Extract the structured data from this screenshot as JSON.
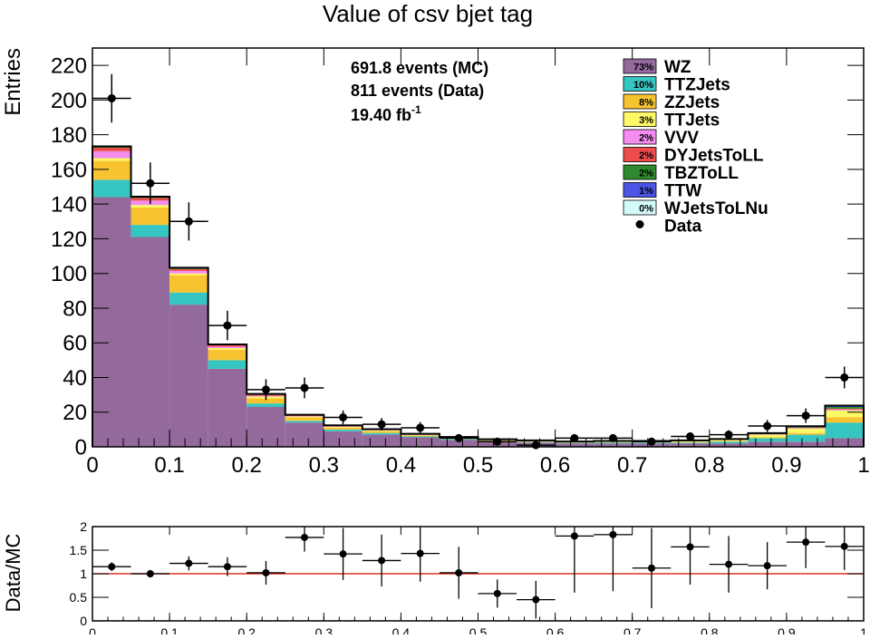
{
  "chart_data": [
    {
      "type": "bar",
      "stacked": true,
      "title": "Value of csv bjet tag",
      "xlabel": "",
      "ylabel": "Entries",
      "xlim": [
        0,
        1
      ],
      "ylim": [
        0,
        230
      ],
      "x_ticks": [
        "0",
        "0.1",
        "0.2",
        "0.3",
        "0.4",
        "0.5",
        "0.6",
        "0.7",
        "0.8",
        "0.9",
        "1"
      ],
      "y_ticks": [
        "0",
        "20",
        "40",
        "60",
        "80",
        "100",
        "120",
        "140",
        "160",
        "180",
        "200",
        "220"
      ],
      "bin_edges": [
        0,
        0.05,
        0.1,
        0.15,
        0.2,
        0.25,
        0.3,
        0.35,
        0.4,
        0.45,
        0.5,
        0.55,
        0.6,
        0.65,
        0.7,
        0.75,
        0.8,
        0.85,
        0.9,
        0.95,
        1.0
      ],
      "annotations": {
        "events_mc": "691.8 events (MC)",
        "events_data": "811 events (Data)",
        "lumi_value": "19.40 fb",
        "lumi_exponent": "-1"
      },
      "series": [
        {
          "name": "WZ",
          "pct": "73%",
          "color": "#946a9c",
          "values": [
            144,
            121,
            82,
            45,
            23,
            14,
            9,
            7,
            5.5,
            4,
            3,
            2.5,
            2,
            2,
            2,
            2,
            2,
            3,
            3,
            5
          ]
        },
        {
          "name": "TTZJets",
          "pct": "10%",
          "color": "#36c5c0",
          "values": [
            10,
            7,
            7,
            5,
            2,
            1,
            1,
            1,
            0.5,
            0.5,
            0.5,
            0.3,
            0.3,
            0.5,
            0.5,
            0.5,
            1,
            2,
            4,
            9
          ]
        },
        {
          "name": "ZZJets",
          "pct": "8%",
          "color": "#f7c331",
          "values": [
            11,
            10,
            10,
            6,
            3,
            2,
            1,
            1,
            0.6,
            0.5,
            0.3,
            0.3,
            0.2,
            0.2,
            0.2,
            0.2,
            0.3,
            0.5,
            1,
            3
          ]
        },
        {
          "name": "TTJets",
          "pct": "3%",
          "color": "#fcf866",
          "values": [
            1.5,
            1.5,
            1,
            1,
            1,
            0.5,
            0.5,
            0.5,
            0.3,
            0.3,
            0.2,
            0.2,
            0.2,
            0.3,
            0.3,
            0.5,
            0.7,
            1.5,
            2.5,
            4
          ]
        },
        {
          "name": "VVV",
          "pct": "2%",
          "color": "#f58cf0",
          "values": [
            4,
            2.5,
            1.5,
            0.8,
            0.5,
            0.3,
            0.3,
            0.2,
            0.2,
            0.1,
            0.1,
            0.1,
            0.1,
            0.1,
            0.1,
            0.1,
            0.1,
            0.2,
            0.3,
            0.5
          ]
        },
        {
          "name": "DYJetsToLL",
          "pct": "2%",
          "color": "#ee4c4c",
          "values": [
            2,
            1.5,
            1,
            0.8,
            0.5,
            0.4,
            0.3,
            0.2,
            0.2,
            0.1,
            0.1,
            0.1,
            0.1,
            0.1,
            0.1,
            0.1,
            0.1,
            0.2,
            0.3,
            0.5
          ]
        },
        {
          "name": "TBZToLL",
          "pct": "2%",
          "color": "#2d8a2d",
          "values": [
            0.5,
            0.5,
            0.5,
            0.3,
            0.3,
            0.2,
            0.2,
            0.2,
            0.1,
            0.1,
            0.1,
            0.1,
            0.1,
            0.1,
            0.1,
            0.2,
            0.2,
            0.3,
            0.5,
            1
          ]
        },
        {
          "name": "TTW",
          "pct": "1%",
          "color": "#4a55e6",
          "values": [
            0.3,
            0.3,
            0.3,
            0.2,
            0.2,
            0.1,
            0.1,
            0.1,
            0.1,
            0.1,
            0.1,
            0.1,
            0.1,
            0.1,
            0.1,
            0.1,
            0.1,
            0.2,
            0.3,
            0.8
          ]
        },
        {
          "name": "WJetsToLNu",
          "pct": "0%",
          "color": "#d4fafa",
          "values": [
            0,
            0,
            0,
            0,
            0,
            0,
            0,
            0,
            0,
            0,
            0,
            0,
            0,
            0,
            0,
            0,
            0,
            0,
            0,
            0
          ]
        }
      ],
      "data": {
        "name": "Data",
        "values": [
          201,
          152,
          130,
          70,
          33,
          34,
          17,
          13,
          11,
          5,
          3,
          1,
          5,
          5,
          3,
          6,
          7,
          12,
          18,
          40
        ],
        "errors": [
          14,
          12,
          11,
          8.5,
          6,
          6,
          4,
          3.6,
          3.3,
          2.2,
          1.7,
          1,
          2.2,
          2.2,
          1.7,
          2.4,
          2.6,
          3.5,
          4.2,
          6.3
        ]
      }
    },
    {
      "type": "scatter",
      "xlabel": "",
      "ylabel": "Data/MC",
      "xlim": [
        0,
        1
      ],
      "ylim": [
        0,
        2
      ],
      "x_ticks": [
        "0",
        "0.1",
        "0.2",
        "0.3",
        "0.4",
        "0.5",
        "0.6",
        "0.7",
        "0.8",
        "0.9",
        "1"
      ],
      "y_ticks": [
        "0",
        "0.5",
        "1",
        "1.5",
        "2"
      ],
      "reference_line": 1,
      "reference_color": "#e0301e",
      "values": [
        1.15,
        1.0,
        1.22,
        1.15,
        1.02,
        1.77,
        1.42,
        1.28,
        1.43,
        1.02,
        0.58,
        0.45,
        1.8,
        1.83,
        1.12,
        1.57,
        1.2,
        1.17,
        1.67,
        1.58
      ],
      "errors_up": [
        0.09,
        0.08,
        0.15,
        0.2,
        0.25,
        0.3,
        0.55,
        0.55,
        0.6,
        0.55,
        0.3,
        0.4,
        1.2,
        1.2,
        0.85,
        0.8,
        0.6,
        0.5,
        0.55,
        0.5
      ],
      "errors_down": [
        0.09,
        0.08,
        0.15,
        0.2,
        0.25,
        0.3,
        0.55,
        0.55,
        0.6,
        0.55,
        0.3,
        0.4,
        1.2,
        1.2,
        0.85,
        0.8,
        0.6,
        0.5,
        0.55,
        0.5
      ]
    }
  ]
}
